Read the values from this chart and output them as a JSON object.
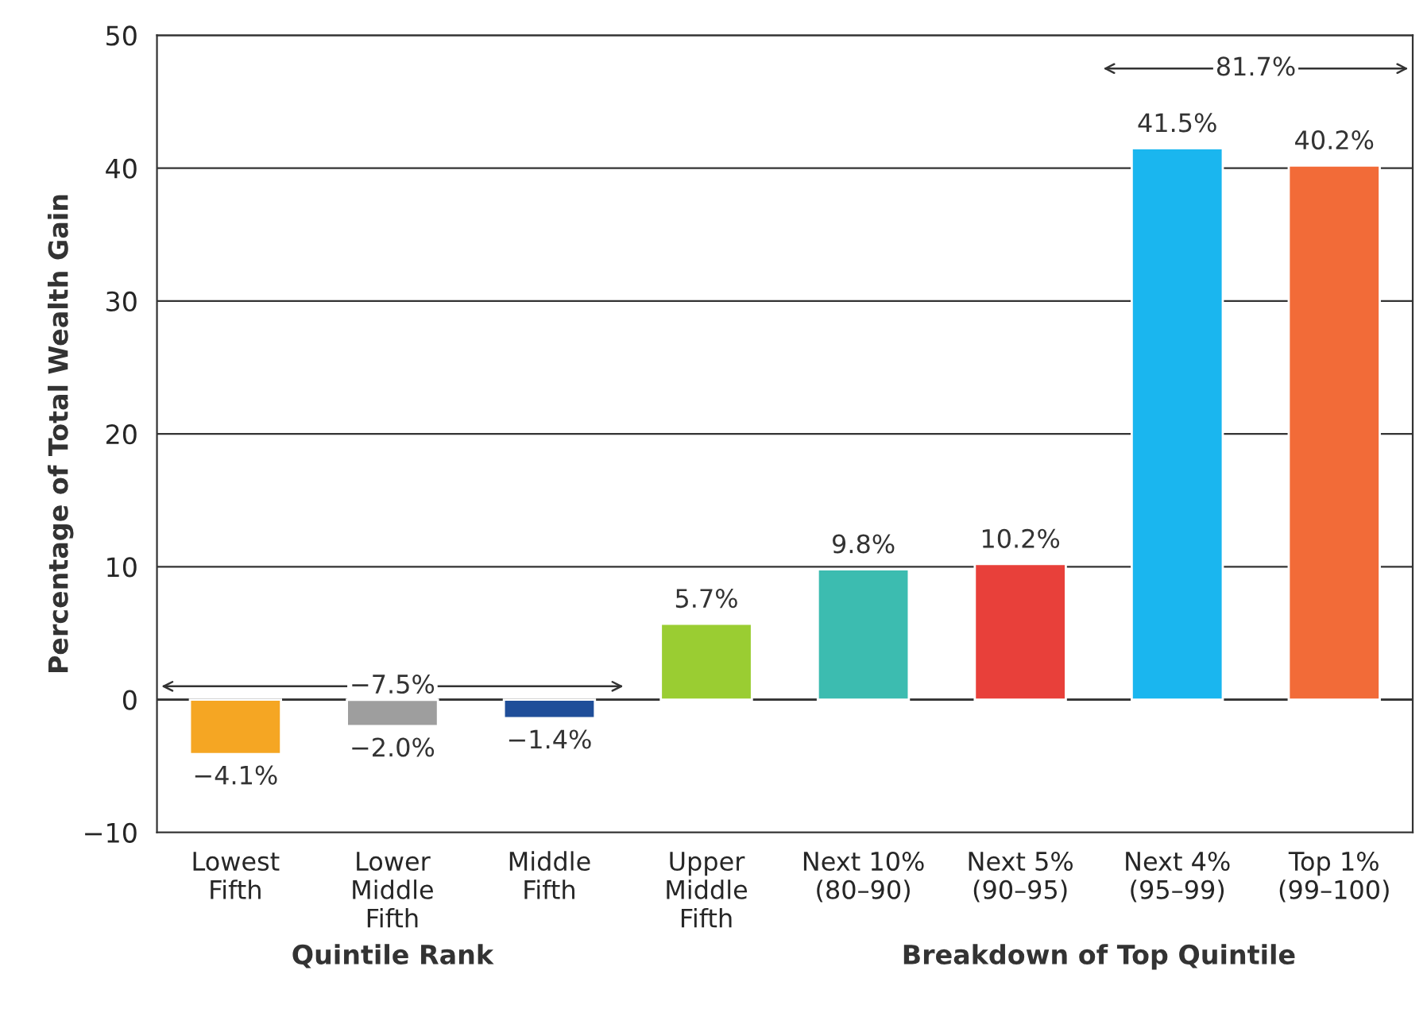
{
  "chart_data": {
    "type": "bar",
    "ylabel": "Percentage of Total Wealth Gain",
    "xlabel": "Quintile Rank",
    "categories": [
      "Lowest\nFifth",
      "Lower\nMiddle\nFifth",
      "Middle\nFifth",
      "Upper\nMiddle\nFifth",
      "Next 10%\n(80–90)",
      "Next 5%\n(90–95)",
      "Next 4%\n(95–99)",
      "Top 1%\n(99–100)"
    ],
    "values": [
      -4.1,
      -2.0,
      -1.4,
      5.7,
      9.8,
      10.2,
      41.5,
      40.2
    ],
    "colors": [
      "#f5a623",
      "#9e9e9e",
      "#1f4e99",
      "#9acd32",
      "#3cbcb0",
      "#e8403a",
      "#1ab6ef",
      "#f26b38"
    ],
    "value_labels": [
      "−4.1%",
      "−2.0%",
      "−1.4%",
      "5.7%",
      "9.8%",
      "10.2%",
      "41.5%",
      "40.2%"
    ],
    "annotations": [
      "−7.5%",
      "81.7%",
      "Breakdown of Top Quintile"
    ],
    "ylim": [
      -10,
      50
    ],
    "yticks": [
      {
        "value": -10,
        "label": "−10"
      },
      0,
      10,
      20,
      30,
      40,
      50
    ],
    "grid": "y"
  }
}
